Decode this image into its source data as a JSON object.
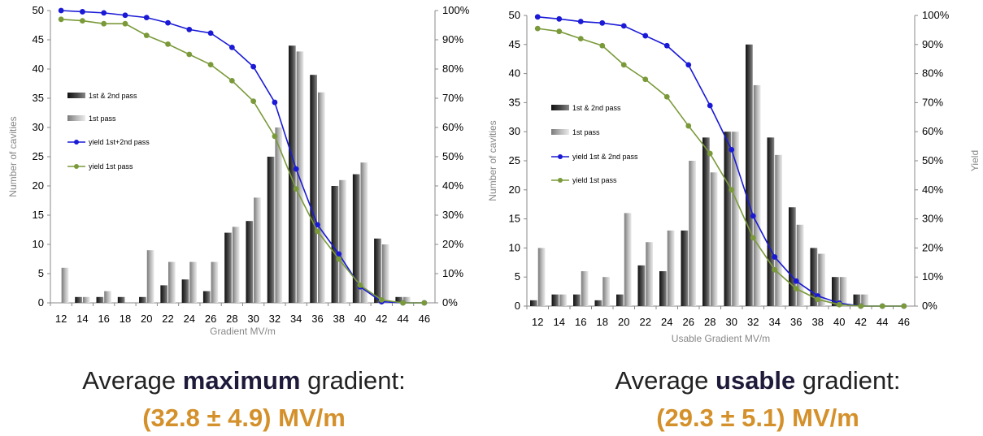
{
  "colors": {
    "bar_dark": "#2b2b2b",
    "bar_light": "#a8a8a8",
    "blue": "#1a1ad6",
    "green": "#7a9a3a",
    "orange": "#d4902a"
  },
  "chart_data": [
    {
      "type": "bar",
      "xlabel": "Gradient MV/m",
      "ylabel": "Number of cavities",
      "y2label": "",
      "categories": [
        "12",
        "14",
        "16",
        "18",
        "20",
        "22",
        "24",
        "26",
        "28",
        "30",
        "32",
        "34",
        "36",
        "38",
        "40",
        "42",
        "44",
        "46"
      ],
      "ylim": [
        0,
        50
      ],
      "y2lim": [
        0,
        100
      ],
      "yticks": [
        "0",
        "5",
        "10",
        "15",
        "20",
        "25",
        "30",
        "35",
        "40",
        "45",
        "50"
      ],
      "y2ticks": [
        "0%",
        "10%",
        "20%",
        "30%",
        "40%",
        "50%",
        "60%",
        "70%",
        "80%",
        "90%",
        "100%"
      ],
      "legend": [
        "1st & 2nd pass",
        "1st pass",
        "yield 1st+2nd pass",
        "yield 1st pass"
      ],
      "series": [
        {
          "name": "1st & 2nd pass",
          "values": [
            0,
            1,
            1,
            1,
            1,
            3,
            4,
            2,
            12,
            14,
            25,
            44,
            39,
            20,
            22,
            11,
            1,
            0
          ]
        },
        {
          "name": "1st pass",
          "values": [
            6,
            1,
            2,
            0,
            9,
            7,
            7,
            7,
            13,
            18,
            30,
            43,
            36,
            21,
            24,
            10,
            1,
            0
          ]
        },
        {
          "name": "yield 1st+2nd pass",
          "values": [
            100,
            99.6,
            99.2,
            98.4,
            97.6,
            95.8,
            93.5,
            92.3,
            87.4,
            80.8,
            68.6,
            45.8,
            26.7,
            16.7,
            5.5,
            0.4,
            0,
            0
          ]
        },
        {
          "name": "yield 1st pass",
          "values": [
            97,
            96.5,
            95.5,
            95.5,
            91.5,
            88.5,
            85,
            81.5,
            76,
            69,
            57,
            39,
            24.5,
            15,
            6,
            1,
            0,
            0
          ]
        }
      ],
      "caption": {
        "prefix": "Average ",
        "bold": "maximum",
        "suffix": " gradient:",
        "value": "(32.8 ± 4.9) MV/m"
      }
    },
    {
      "type": "bar",
      "xlabel": "Usable Gradient MV/m",
      "ylabel": "Number of cavities",
      "y2label": "Yield",
      "categories": [
        "12",
        "14",
        "16",
        "18",
        "20",
        "22",
        "24",
        "26",
        "28",
        "30",
        "32",
        "34",
        "36",
        "38",
        "40",
        "42",
        "44",
        "46"
      ],
      "ylim": [
        0,
        50
      ],
      "y2lim": [
        0,
        100
      ],
      "yticks": [
        "0",
        "5",
        "10",
        "15",
        "20",
        "25",
        "30",
        "35",
        "40",
        "45",
        "50"
      ],
      "y2ticks": [
        "0%",
        "10%",
        "20%",
        "30%",
        "40%",
        "50%",
        "60%",
        "70%",
        "80%",
        "90%",
        "100%"
      ],
      "legend": [
        "1st & 2nd pass",
        "1st pass",
        "yield 1st & 2nd pass",
        "yield 1st pass"
      ],
      "series": [
        {
          "name": "1st & 2nd pass",
          "values": [
            1,
            2,
            2,
            1,
            2,
            7,
            6,
            13,
            29,
            30,
            45,
            29,
            17,
            10,
            5,
            2,
            0,
            0
          ]
        },
        {
          "name": "1st pass",
          "values": [
            10,
            2,
            6,
            5,
            16,
            11,
            13,
            25,
            23,
            30,
            38,
            26,
            14,
            9,
            5,
            2,
            0,
            0
          ]
        },
        {
          "name": "yield 1st & 2nd pass",
          "values": [
            99.5,
            98.8,
            97.9,
            97.4,
            96.4,
            93,
            89.6,
            83,
            69,
            53.8,
            31,
            16.9,
            8.6,
            3.5,
            1,
            0,
            0,
            0
          ]
        },
        {
          "name": "yield 1st pass",
          "values": [
            95.5,
            94.5,
            92,
            89.6,
            83,
            78,
            72,
            62,
            52.5,
            40,
            23.5,
            12.5,
            6,
            2.3,
            0.5,
            0,
            0,
            0
          ]
        }
      ],
      "caption": {
        "prefix": "Average ",
        "bold": "usable",
        "suffix": " gradient:",
        "value": "(29.3 ± 5.1) MV/m"
      }
    }
  ]
}
